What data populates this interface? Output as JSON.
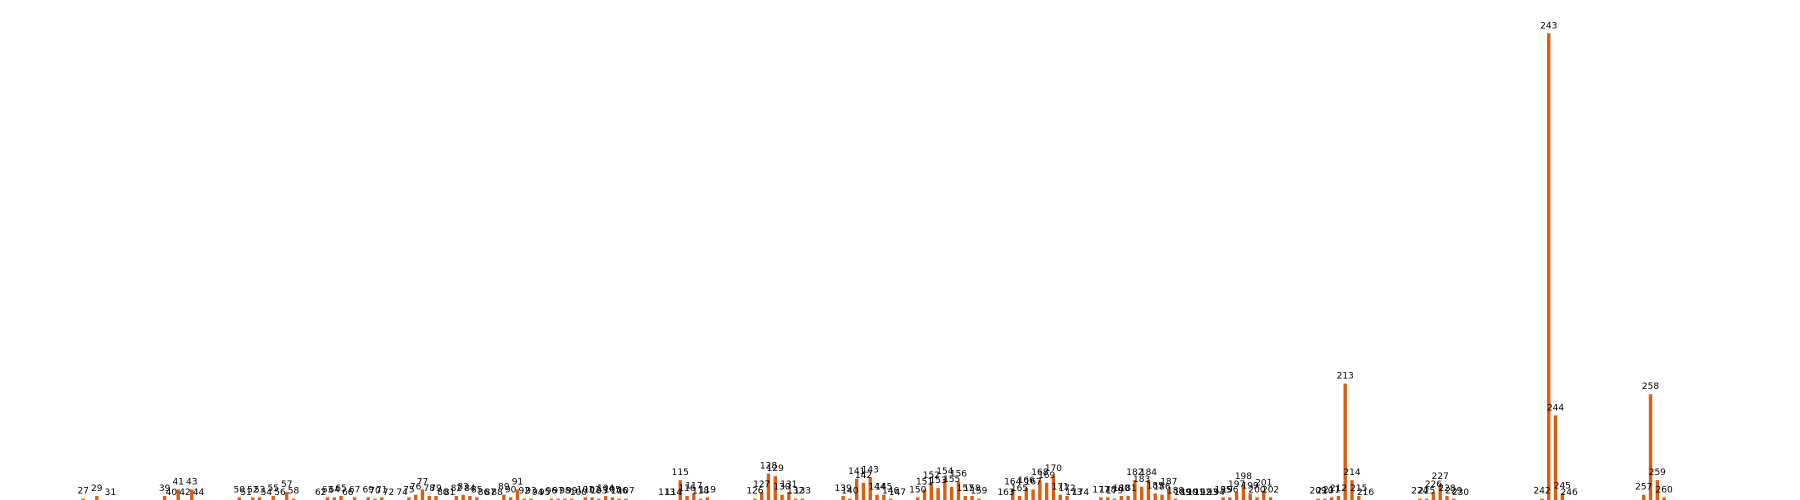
{
  "chart_data": {
    "type": "bar",
    "title": "",
    "xlabel": "",
    "ylabel": "",
    "grid": false,
    "axes_visible": false,
    "bar_color": "#d95f0e",
    "xlim": [
      0,
      282
    ],
    "ylim": [
      0,
      360
    ],
    "points": [
      {
        "x": 27,
        "label": "27",
        "value": 1
      },
      {
        "x": 29,
        "label": "29",
        "value": 3
      },
      {
        "x": 31,
        "label": "31",
        "value": 0
      },
      {
        "x": 39,
        "label": "39",
        "value": 3
      },
      {
        "x": 40,
        "label": "40",
        "value": 0
      },
      {
        "x": 41,
        "label": "41",
        "value": 8
      },
      {
        "x": 42,
        "label": "42",
        "value": 0
      },
      {
        "x": 43,
        "label": "43",
        "value": 8
      },
      {
        "x": 44,
        "label": "44",
        "value": 0
      },
      {
        "x": 50,
        "label": "50",
        "value": 2
      },
      {
        "x": 51,
        "label": "51",
        "value": 0
      },
      {
        "x": 52,
        "label": "52",
        "value": 2
      },
      {
        "x": 53,
        "label": "53",
        "value": 2
      },
      {
        "x": 54,
        "label": "54",
        "value": 0
      },
      {
        "x": 55,
        "label": "55",
        "value": 3
      },
      {
        "x": 56,
        "label": "56",
        "value": 0
      },
      {
        "x": 57,
        "label": "57",
        "value": 6
      },
      {
        "x": 58,
        "label": "58",
        "value": 1
      },
      {
        "x": 62,
        "label": "62",
        "value": 0
      },
      {
        "x": 63,
        "label": "63",
        "value": 2
      },
      {
        "x": 64,
        "label": "64",
        "value": 2
      },
      {
        "x": 65,
        "label": "65",
        "value": 3
      },
      {
        "x": 66,
        "label": "66",
        "value": 0
      },
      {
        "x": 67,
        "label": "67",
        "value": 2
      },
      {
        "x": 69,
        "label": "69",
        "value": 2
      },
      {
        "x": 70,
        "label": "70",
        "value": 1
      },
      {
        "x": 71,
        "label": "71",
        "value": 2
      },
      {
        "x": 72,
        "label": "72",
        "value": 0
      },
      {
        "x": 74,
        "label": "74",
        "value": 0
      },
      {
        "x": 75,
        "label": "75",
        "value": 2
      },
      {
        "x": 76,
        "label": "76",
        "value": 4
      },
      {
        "x": 77,
        "label": "77",
        "value": 8
      },
      {
        "x": 78,
        "label": "78",
        "value": 3
      },
      {
        "x": 79,
        "label": "79",
        "value": 3
      },
      {
        "x": 80,
        "label": "80",
        "value": 0
      },
      {
        "x": 81,
        "label": "81",
        "value": 0
      },
      {
        "x": 82,
        "label": "82",
        "value": 3
      },
      {
        "x": 83,
        "label": "83",
        "value": 4
      },
      {
        "x": 84,
        "label": "84",
        "value": 3
      },
      {
        "x": 85,
        "label": "85",
        "value": 2
      },
      {
        "x": 86,
        "label": "86",
        "value": 0
      },
      {
        "x": 87,
        "label": "87",
        "value": 0
      },
      {
        "x": 88,
        "label": "88",
        "value": 0
      },
      {
        "x": 89,
        "label": "89",
        "value": 4
      },
      {
        "x": 90,
        "label": "90",
        "value": 2
      },
      {
        "x": 91,
        "label": "91",
        "value": 8
      },
      {
        "x": 92,
        "label": "92",
        "value": 1
      },
      {
        "x": 93,
        "label": "93",
        "value": 1
      },
      {
        "x": 94,
        "label": "94",
        "value": 0
      },
      {
        "x": 95,
        "label": "95",
        "value": 0
      },
      {
        "x": 96,
        "label": "96",
        "value": 1
      },
      {
        "x": 97,
        "label": "97",
        "value": 1
      },
      {
        "x": 98,
        "label": "98",
        "value": 1
      },
      {
        "x": 99,
        "label": "99",
        "value": 1
      },
      {
        "x": 100,
        "label": "100",
        "value": 0
      },
      {
        "x": 101,
        "label": "101",
        "value": 2
      },
      {
        "x": 102,
        "label": "102",
        "value": 2
      },
      {
        "x": 103,
        "label": "103",
        "value": 1
      },
      {
        "x": 104,
        "label": "104",
        "value": 3
      },
      {
        "x": 105,
        "label": "105",
        "value": 2
      },
      {
        "x": 106,
        "label": "106",
        "value": 1
      },
      {
        "x": 107,
        "label": "107",
        "value": 1
      },
      {
        "x": 113,
        "label": "113",
        "value": 0
      },
      {
        "x": 114,
        "label": "114",
        "value": 0
      },
      {
        "x": 115,
        "label": "115",
        "value": 15
      },
      {
        "x": 116,
        "label": "116",
        "value": 3
      },
      {
        "x": 117,
        "label": "117",
        "value": 5
      },
      {
        "x": 118,
        "label": "118",
        "value": 1
      },
      {
        "x": 119,
        "label": "119",
        "value": 2
      },
      {
        "x": 126,
        "label": "126",
        "value": 1
      },
      {
        "x": 127,
        "label": "127",
        "value": 6
      },
      {
        "x": 128,
        "label": "128",
        "value": 20
      },
      {
        "x": 129,
        "label": "129",
        "value": 18
      },
      {
        "x": 130,
        "label": "130",
        "value": 4
      },
      {
        "x": 131,
        "label": "131",
        "value": 6
      },
      {
        "x": 132,
        "label": "132",
        "value": 1
      },
      {
        "x": 133,
        "label": "133",
        "value": 1
      },
      {
        "x": 139,
        "label": "139",
        "value": 3
      },
      {
        "x": 140,
        "label": "140",
        "value": 1
      },
      {
        "x": 141,
        "label": "141",
        "value": 16
      },
      {
        "x": 142,
        "label": "142",
        "value": 13
      },
      {
        "x": 143,
        "label": "143",
        "value": 17
      },
      {
        "x": 144,
        "label": "144",
        "value": 4
      },
      {
        "x": 145,
        "label": "145",
        "value": 4
      },
      {
        "x": 146,
        "label": "146",
        "value": 1
      },
      {
        "x": 147,
        "label": "147",
        "value": 0
      },
      {
        "x": 150,
        "label": "150",
        "value": 2
      },
      {
        "x": 151,
        "label": "151",
        "value": 8
      },
      {
        "x": 152,
        "label": "152",
        "value": 13
      },
      {
        "x": 153,
        "label": "153",
        "value": 9
      },
      {
        "x": 154,
        "label": "154",
        "value": 16
      },
      {
        "x": 155,
        "label": "155",
        "value": 10
      },
      {
        "x": 156,
        "label": "156",
        "value": 14
      },
      {
        "x": 157,
        "label": "157",
        "value": 3
      },
      {
        "x": 158,
        "label": "158",
        "value": 3
      },
      {
        "x": 159,
        "label": "159",
        "value": 1
      },
      {
        "x": 163,
        "label": "163",
        "value": 0
      },
      {
        "x": 164,
        "label": "164",
        "value": 8
      },
      {
        "x": 165,
        "label": "165",
        "value": 3
      },
      {
        "x": 166,
        "label": "166",
        "value": 9
      },
      {
        "x": 167,
        "label": "167",
        "value": 8
      },
      {
        "x": 168,
        "label": "168",
        "value": 15
      },
      {
        "x": 169,
        "label": "169",
        "value": 13
      },
      {
        "x": 170,
        "label": "170",
        "value": 18
      },
      {
        "x": 171,
        "label": "171",
        "value": 4
      },
      {
        "x": 172,
        "label": "172",
        "value": 3
      },
      {
        "x": 173,
        "label": "173",
        "value": 0
      },
      {
        "x": 174,
        "label": "174",
        "value": 0
      },
      {
        "x": 177,
        "label": "177",
        "value": 2
      },
      {
        "x": 178,
        "label": "178",
        "value": 2
      },
      {
        "x": 179,
        "label": "179",
        "value": 1
      },
      {
        "x": 180,
        "label": "180",
        "value": 3
      },
      {
        "x": 181,
        "label": "181",
        "value": 3
      },
      {
        "x": 182,
        "label": "182",
        "value": 15
      },
      {
        "x": 183,
        "label": "183",
        "value": 10
      },
      {
        "x": 184,
        "label": "184",
        "value": 15
      },
      {
        "x": 185,
        "label": "185",
        "value": 5
      },
      {
        "x": 186,
        "label": "186",
        "value": 4
      },
      {
        "x": 187,
        "label": "187",
        "value": 8
      },
      {
        "x": 188,
        "label": "188",
        "value": 1
      },
      {
        "x": 189,
        "label": "189",
        "value": 0
      },
      {
        "x": 190,
        "label": "190",
        "value": 0
      },
      {
        "x": 191,
        "label": "191",
        "value": 0
      },
      {
        "x": 192,
        "label": "192",
        "value": 0
      },
      {
        "x": 193,
        "label": "193",
        "value": 0
      },
      {
        "x": 194,
        "label": "194",
        "value": 0
      },
      {
        "x": 195,
        "label": "195",
        "value": 2
      },
      {
        "x": 196,
        "label": "196",
        "value": 2
      },
      {
        "x": 197,
        "label": "197",
        "value": 6
      },
      {
        "x": 198,
        "label": "198",
        "value": 12
      },
      {
        "x": 199,
        "label": "199",
        "value": 5
      },
      {
        "x": 200,
        "label": "200",
        "value": 2
      },
      {
        "x": 201,
        "label": "201",
        "value": 7
      },
      {
        "x": 202,
        "label": "202",
        "value": 2
      },
      {
        "x": 209,
        "label": "209",
        "value": 1
      },
      {
        "x": 210,
        "label": "210",
        "value": 1
      },
      {
        "x": 211,
        "label": "211",
        "value": 2
      },
      {
        "x": 212,
        "label": "212",
        "value": 3
      },
      {
        "x": 213,
        "label": "213",
        "value": 88
      },
      {
        "x": 214,
        "label": "214",
        "value": 15
      },
      {
        "x": 215,
        "label": "215",
        "value": 3
      },
      {
        "x": 216,
        "label": "216",
        "value": 0
      },
      {
        "x": 224,
        "label": "224",
        "value": 1
      },
      {
        "x": 225,
        "label": "225",
        "value": 1
      },
      {
        "x": 226,
        "label": "226",
        "value": 6
      },
      {
        "x": 227,
        "label": "227",
        "value": 12
      },
      {
        "x": 228,
        "label": "228",
        "value": 3
      },
      {
        "x": 229,
        "label": "229",
        "value": 1
      },
      {
        "x": 230,
        "label": "230",
        "value": 0
      },
      {
        "x": 242,
        "label": "242",
        "value": 1
      },
      {
        "x": 243,
        "label": "243",
        "value": 353
      },
      {
        "x": 244,
        "label": "244",
        "value": 64
      },
      {
        "x": 245,
        "label": "245",
        "value": 5
      },
      {
        "x": 246,
        "label": "246",
        "value": 0
      },
      {
        "x": 257,
        "label": "257",
        "value": 4
      },
      {
        "x": 258,
        "label": "258",
        "value": 80
      },
      {
        "x": 259,
        "label": "259",
        "value": 15
      },
      {
        "x": 260,
        "label": "260",
        "value": 2
      }
    ]
  }
}
